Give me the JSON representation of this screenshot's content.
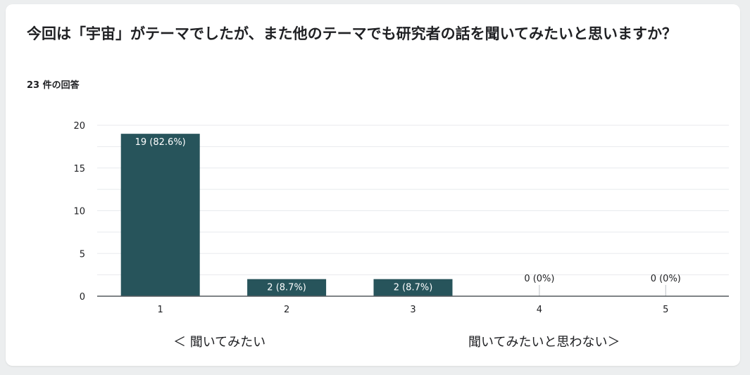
{
  "question": {
    "title": "今回は「宇宙」がテーマでしたが、また他のテーマでも研究者の話を聞いてみたいと思いますか？",
    "response_count": "23 件の回答"
  },
  "scale": {
    "left_label": "＜ 聞いてみたい",
    "right_label": "聞いてみたいと思わない＞"
  },
  "colors": {
    "bar": "#27545b",
    "label_inside": "#ffffff",
    "label_outside": "#202124"
  },
  "chart_data": {
    "type": "bar",
    "categories": [
      "1",
      "2",
      "3",
      "4",
      "5"
    ],
    "values": [
      19,
      2,
      2,
      0,
      0
    ],
    "data_labels": [
      "19 (82.6%)",
      "2 (8.7%)",
      "2 (8.7%)",
      "0 (0%)",
      "0 (0%)"
    ],
    "yticks": [
      0,
      5,
      10,
      15,
      20
    ],
    "ylim": [
      0,
      20
    ],
    "grid": true,
    "legend": "none"
  }
}
